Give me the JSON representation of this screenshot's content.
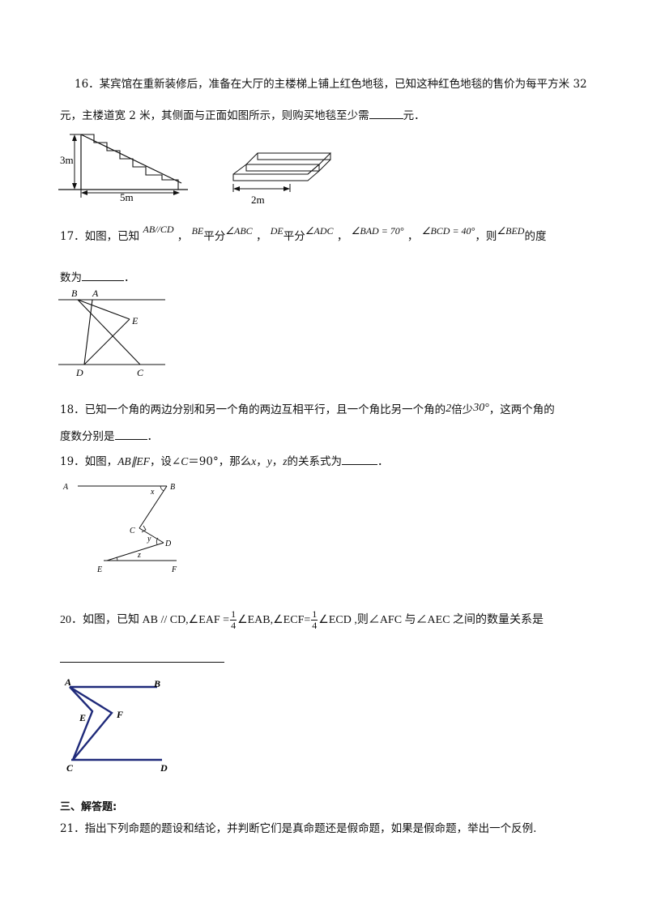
{
  "q16": {
    "line1": "16．某宾馆在重新装修后，准备在大厅的主楼梯上铺上红色地毯，已知这种红色地毯的售价为每平方米 32",
    "line2a": "元，主楼道宽 2 米，其侧面与正面如图所示，则购买地毯至少需",
    "line2b": "元．",
    "fig_height": "3m",
    "fig_length": "5m",
    "fig_width": "2m"
  },
  "q17": {
    "p1": "17．如图，已知",
    "e1": "AB//CD",
    "sep1": "，",
    "e2": "BE",
    "w1": "平分",
    "e3": "∠ABC",
    "sep2": "，",
    "e4": "DE",
    "w2": "平分",
    "e5": "∠ADC",
    "sep3": "，",
    "e6": "∠BAD = 70°",
    "sep4": "，",
    "e7": "∠BCD = 40°",
    "sep5": "，则",
    "e8": "∠BED",
    "w3": "的度",
    "line2a": "数为",
    "line2b": "．",
    "labels": {
      "B": "B",
      "A": "A",
      "E": "E",
      "D": "D",
      "C": "C"
    }
  },
  "q18": {
    "line1a": "18．已知一个角的两边分别和另一个角的两边互相平行，且一个角比另一个角的",
    "n1": "2",
    "line1b": "倍少",
    "n2": "30°",
    "line1c": "，这两个角的",
    "line2a": "度数分别是",
    "line2b": "．"
  },
  "q19": {
    "p1": "19．如图，",
    "e1": "AB∥EF",
    "p2": "，设∠",
    "e2": "C",
    "p3": "＝90°，那么",
    "e3": "x",
    "p4": "，",
    "e4": "y",
    "p5": "，",
    "e5": "z",
    "p6": "的关系式为",
    "p7": "．",
    "labels": {
      "A": "A",
      "B": "B",
      "x": "x",
      "C": "C",
      "y": "y",
      "D": "D",
      "z": "z",
      "E": "E",
      "F": "F"
    }
  },
  "q20": {
    "p1": "20．如图，已知 AB // CD,∠EAF =",
    "frac1_num": "1",
    "frac1_den": "4",
    "p2": "∠EAB,∠ECF=",
    "frac2_num": "1",
    "frac2_den": "4",
    "p3": "∠ECD ,则∠AFC 与∠AEC 之间的数量关系是",
    "labels": {
      "A": "A",
      "B": "B",
      "E": "E",
      "F": "F",
      "C": "C",
      "D": "D"
    }
  },
  "section3": {
    "title": "三、解答题:"
  },
  "q21": {
    "text": "21．指出下列命题的题设和结论，并判断它们是真命题还是假命题，如果是假命题，举出一个反例."
  }
}
